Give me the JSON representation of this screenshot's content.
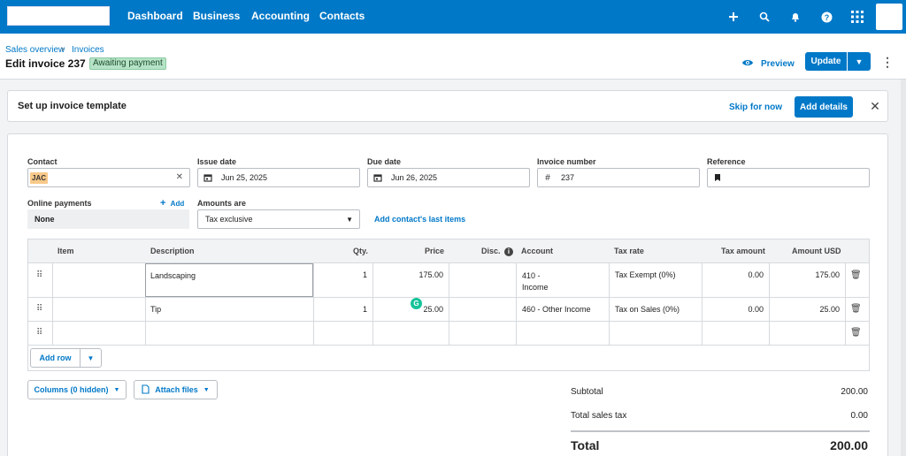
{
  "nav": {
    "items": [
      "Dashboard",
      "Business",
      "Accounting",
      "Contacts"
    ],
    "icons": [
      "plus-icon",
      "search-icon",
      "bell-icon",
      "help-icon",
      "apps-grid-icon"
    ]
  },
  "header": {
    "breadcrumb": [
      "Sales overview",
      "Invoices"
    ],
    "title": "Edit invoice 237",
    "status": "Awaiting payment",
    "preview_label": "Preview",
    "update_label": "Update"
  },
  "banner": {
    "title": "Set up invoice template",
    "skip_label": "Skip for now",
    "add_details_label": "Add details"
  },
  "form": {
    "contact": {
      "label": "Contact",
      "value": "JAC"
    },
    "issue_date": {
      "label": "Issue date",
      "value": "Jun 25, 2025"
    },
    "due_date": {
      "label": "Due date",
      "value": "Jun 26, 2025"
    },
    "invoice_number": {
      "label": "Invoice number",
      "value": "237"
    },
    "reference": {
      "label": "Reference",
      "value": ""
    },
    "online_payments": {
      "label": "Online payments",
      "add_label": "Add",
      "value": "None"
    },
    "amounts_are": {
      "label": "Amounts are",
      "value": "Tax exclusive"
    },
    "last_items_link": "Add contact's last items"
  },
  "table": {
    "headers": {
      "item": "Item",
      "description": "Description",
      "qty": "Qty.",
      "price": "Price",
      "disc": "Disc.",
      "account": "Account",
      "tax_rate": "Tax rate",
      "tax_amount": "Tax amount",
      "amount": "Amount USD"
    },
    "rows": [
      {
        "item": "",
        "description": "Landscaping",
        "qty": "1",
        "price": "175.00",
        "disc": "",
        "account_line1": "410 -",
        "account_line2": "Income",
        "tax_rate": "Tax Exempt (0%)",
        "tax_amount": "0.00",
        "amount": "175.00"
      },
      {
        "item": "",
        "description": "Tip",
        "qty": "1",
        "price": "25.00",
        "disc": "",
        "account_line1": "460 - Other Income",
        "account_line2": "",
        "tax_rate": "Tax on Sales (0%)",
        "tax_amount": "0.00",
        "amount": "25.00"
      },
      {
        "item": "",
        "description": "",
        "qty": "",
        "price": "",
        "disc": "",
        "account_line1": "",
        "account_line2": "",
        "tax_rate": "",
        "tax_amount": "",
        "amount": ""
      }
    ],
    "add_row_label": "Add row"
  },
  "footer": {
    "columns_label": "Columns (0 hidden)",
    "attach_label": "Attach files",
    "subtotal_label": "Subtotal",
    "subtotal_value": "200.00",
    "tax_label": "Total sales tax",
    "tax_value": "0.00",
    "total_label": "Total",
    "total_value": "200.00"
  },
  "colors": {
    "brand": "#0078c8",
    "badge": "#b6e3c7"
  }
}
